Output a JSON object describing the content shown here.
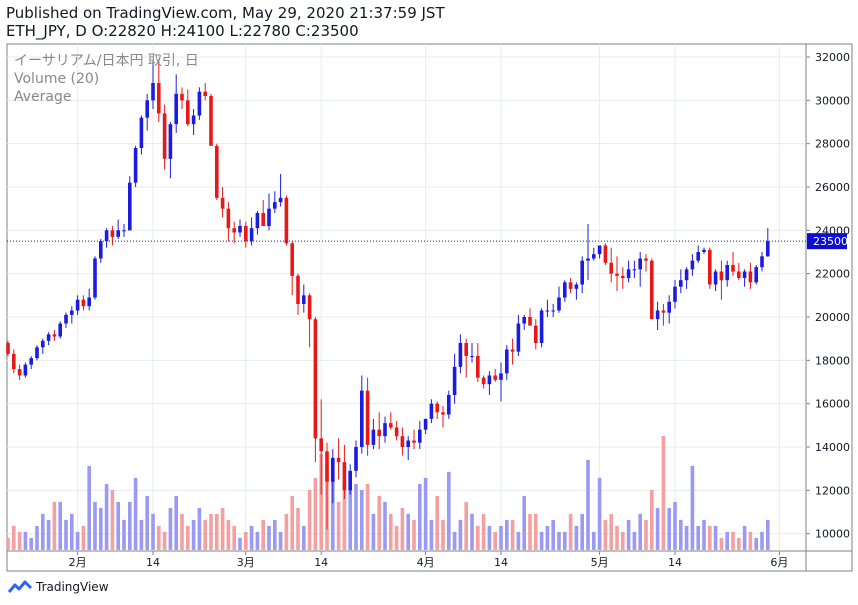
{
  "header": {
    "published": "Published on TradingView.com, May 29, 2020 21:37:59 JST",
    "ohlc": "ETH_JPY, D O:22820 H:24100 L:22780 C:23500"
  },
  "legend": {
    "symbol": "イーサリアム/日本円 取引, 日",
    "volume": "Volume (20)",
    "average": "Average"
  },
  "footer": {
    "brand": "TradingView"
  },
  "colors": {
    "up": "#1c1ce0",
    "down": "#e81818",
    "vol_up": "#9a9af5",
    "vol_down": "#f5a0a0",
    "grid": "#e8ebef",
    "price_line": "#1c1c8c",
    "price_label_bg": "#0d0dd6"
  },
  "chart_data": {
    "type": "candlestick",
    "symbol": "ETH_JPY",
    "interval": "D",
    "ylim": [
      9200,
      32600
    ],
    "y_ticks": [
      10000,
      12000,
      14000,
      16000,
      18000,
      20000,
      22000,
      24000,
      26000,
      28000,
      30000,
      32000
    ],
    "x_ticks": [
      {
        "label": "2月",
        "index": 12
      },
      {
        "label": "14",
        "index": 25
      },
      {
        "label": "3月",
        "index": 41
      },
      {
        "label": "14",
        "index": 54
      },
      {
        "label": "4月",
        "index": 72
      },
      {
        "label": "14",
        "index": 85
      },
      {
        "label": "5月",
        "index": 102
      },
      {
        "label": "14",
        "index": 115
      },
      {
        "label": "6月",
        "index": 133
      }
    ],
    "last_price": 23500,
    "last_price_label": "23500",
    "x_max_index": 136,
    "volume_baseline": 9250,
    "volume_scale_per_unit": 6,
    "candles": [
      [
        18800,
        18900,
        18200,
        18300,
        2
      ],
      [
        18300,
        18500,
        17400,
        17600,
        4
      ],
      [
        17600,
        17800,
        17100,
        17300,
        3
      ],
      [
        17300,
        17900,
        17200,
        17800,
        3
      ],
      [
        17800,
        18200,
        17600,
        18100,
        2
      ],
      [
        18100,
        18700,
        18000,
        18600,
        4
      ],
      [
        18600,
        19000,
        18300,
        18900,
        6
      ],
      [
        18900,
        19300,
        18700,
        19200,
        5
      ],
      [
        19200,
        19400,
        18900,
        19100,
        8
      ],
      [
        19100,
        19800,
        19000,
        19700,
        8
      ],
      [
        19700,
        20200,
        19500,
        20100,
        5
      ],
      [
        20100,
        20500,
        19700,
        20300,
        6
      ],
      [
        20300,
        21000,
        20100,
        20800,
        3
      ],
      [
        20800,
        21000,
        20300,
        20500,
        4
      ],
      [
        20500,
        21300,
        20300,
        20900,
        14
      ],
      [
        20900,
        22800,
        20800,
        22700,
        8
      ],
      [
        22700,
        23600,
        22500,
        23500,
        7
      ],
      [
        23500,
        24100,
        23200,
        24000,
        11
      ],
      [
        24000,
        24200,
        23300,
        23700,
        10
      ],
      [
        23700,
        24500,
        23600,
        24000,
        8
      ],
      [
        24000,
        24300,
        23700,
        24000,
        5
      ],
      [
        24000,
        26500,
        24000,
        26200,
        8
      ],
      [
        26200,
        27900,
        26000,
        27800,
        12
      ],
      [
        27800,
        29300,
        27500,
        29200,
        5
      ],
      [
        29200,
        30300,
        28600,
        30000,
        9
      ],
      [
        30000,
        31800,
        29600,
        30800,
        6
      ],
      [
        30800,
        31900,
        29000,
        29400,
        4
      ],
      [
        29400,
        29800,
        26800,
        27300,
        3
      ],
      [
        27300,
        29000,
        26400,
        28900,
        7
      ],
      [
        28900,
        31200,
        28500,
        30300,
        9
      ],
      [
        30300,
        30600,
        29600,
        30000,
        6
      ],
      [
        30000,
        30500,
        28800,
        28900,
        4
      ],
      [
        28900,
        29600,
        28400,
        29300,
        5
      ],
      [
        29300,
        30600,
        29100,
        30400,
        7
      ],
      [
        30400,
        30800,
        30000,
        30200,
        5
      ],
      [
        30200,
        30300,
        28000,
        27900,
        6
      ],
      [
        27900,
        28000,
        25400,
        25500,
        6
      ],
      [
        25500,
        26000,
        24600,
        25000,
        7
      ],
      [
        25000,
        25300,
        23500,
        24100,
        5
      ],
      [
        24100,
        24400,
        23400,
        23900,
        4
      ],
      [
        23900,
        24500,
        23700,
        24200,
        2
      ],
      [
        24200,
        24400,
        23200,
        23500,
        3
      ],
      [
        23500,
        24600,
        23300,
        24100,
        4
      ],
      [
        24100,
        24900,
        23800,
        24800,
        3
      ],
      [
        24800,
        25400,
        24300,
        24200,
        5
      ],
      [
        24200,
        25700,
        24000,
        25000,
        4
      ],
      [
        25000,
        25800,
        24800,
        25300,
        5
      ],
      [
        25300,
        26600,
        25100,
        25500,
        3
      ],
      [
        25500,
        25600,
        23300,
        23400,
        6
      ],
      [
        23400,
        23500,
        21000,
        21900,
        9
      ],
      [
        21900,
        22000,
        20100,
        20600,
        7
      ],
      [
        20600,
        21500,
        20200,
        21000,
        4
      ],
      [
        21000,
        21100,
        18600,
        19900,
        10
      ],
      [
        19900,
        20000,
        13300,
        14400,
        12
      ],
      [
        14400,
        16200,
        11800,
        13800,
        16
      ],
      [
        13800,
        14200,
        10200,
        12400,
        14
      ],
      [
        12400,
        13900,
        11400,
        13500,
        12
      ],
      [
        13500,
        14400,
        12500,
        13300,
        8
      ],
      [
        13300,
        14100,
        11600,
        12000,
        11
      ],
      [
        12000,
        13200,
        11800,
        12900,
        13
      ],
      [
        12900,
        14300,
        12600,
        14000,
        11
      ],
      [
        14000,
        17300,
        13700,
        16600,
        10
      ],
      [
        16600,
        17200,
        13600,
        14100,
        11
      ],
      [
        14100,
        15300,
        13900,
        14800,
        6
      ],
      [
        14800,
        15600,
        13900,
        14500,
        9
      ],
      [
        14500,
        15400,
        14200,
        15100,
        8
      ],
      [
        15100,
        15600,
        14800,
        14900,
        6
      ],
      [
        14900,
        15200,
        14300,
        14500,
        4
      ],
      [
        14500,
        14900,
        13600,
        14000,
        7
      ],
      [
        14000,
        14500,
        13400,
        14300,
        6
      ],
      [
        14300,
        14800,
        13900,
        14200,
        5
      ],
      [
        14200,
        15200,
        13900,
        14800,
        11
      ],
      [
        14800,
        15300,
        14600,
        15300,
        12
      ],
      [
        15300,
        16200,
        15100,
        16000,
        5
      ],
      [
        16000,
        16100,
        15300,
        15600,
        9
      ],
      [
        15600,
        15900,
        14900,
        15500,
        5
      ],
      [
        15500,
        16600,
        15300,
        16400,
        13
      ],
      [
        16400,
        18300,
        16000,
        17700,
        3
      ],
      [
        17700,
        19200,
        17400,
        18800,
        5
      ],
      [
        18800,
        19000,
        17200,
        18200,
        8
      ],
      [
        18200,
        18800,
        17900,
        18200,
        6
      ],
      [
        18200,
        18800,
        17000,
        17200,
        4
      ],
      [
        17200,
        17300,
        16700,
        16900,
        6
      ],
      [
        16900,
        17500,
        16400,
        17300,
        4
      ],
      [
        17300,
        17600,
        17000,
        17100,
        3
      ],
      [
        17100,
        17900,
        16100,
        17400,
        4
      ],
      [
        17400,
        18700,
        17100,
        18500,
        5
      ],
      [
        18500,
        19000,
        17800,
        18400,
        5
      ],
      [
        18400,
        20100,
        18200,
        19700,
        3
      ],
      [
        19700,
        20100,
        19400,
        20000,
        9
      ],
      [
        20000,
        20400,
        19700,
        19600,
        6
      ],
      [
        19600,
        19900,
        18500,
        18800,
        6
      ],
      [
        18800,
        20400,
        18600,
        20300,
        3
      ],
      [
        20300,
        20800,
        20000,
        20300,
        4
      ],
      [
        20300,
        20600,
        20000,
        20300,
        5
      ],
      [
        20300,
        21400,
        20200,
        20900,
        3
      ],
      [
        20900,
        21700,
        20700,
        21600,
        3
      ],
      [
        21600,
        21800,
        21100,
        21300,
        6
      ],
      [
        21300,
        21600,
        20800,
        21500,
        4
      ],
      [
        21500,
        22800,
        21100,
        22600,
        6
      ],
      [
        22600,
        24300,
        21700,
        22700,
        15
      ],
      [
        22700,
        23200,
        22600,
        22900,
        3
      ],
      [
        22900,
        23300,
        22700,
        23300,
        12
      ],
      [
        23300,
        23400,
        22400,
        22500,
        5
      ],
      [
        22500,
        23200,
        21600,
        22000,
        6
      ],
      [
        22000,
        22800,
        21200,
        21900,
        4
      ],
      [
        21900,
        22300,
        21300,
        21800,
        3
      ],
      [
        21800,
        22600,
        21600,
        22200,
        5
      ],
      [
        22200,
        22600,
        21800,
        22200,
        3
      ],
      [
        22200,
        23000,
        21400,
        22700,
        6
      ],
      [
        22700,
        22900,
        22100,
        22600,
        5
      ],
      [
        22600,
        22700,
        20000,
        19900,
        10
      ],
      [
        19900,
        20700,
        19400,
        20300,
        7
      ],
      [
        20300,
        20600,
        19600,
        20200,
        19
      ],
      [
        20200,
        21000,
        19700,
        20700,
        7
      ],
      [
        20700,
        21700,
        20400,
        21400,
        8
      ],
      [
        21400,
        22200,
        21100,
        21700,
        5
      ],
      [
        21700,
        22300,
        21300,
        22200,
        4
      ],
      [
        22200,
        22900,
        21900,
        22600,
        14
      ],
      [
        22600,
        23300,
        22500,
        23000,
        4
      ],
      [
        23000,
        23200,
        22900,
        23100,
        5
      ],
      [
        23100,
        23200,
        21300,
        21500,
        4
      ],
      [
        21500,
        22200,
        21200,
        22100,
        4
      ],
      [
        22100,
        22600,
        20800,
        21700,
        2
      ],
      [
        21700,
        22600,
        21400,
        22400,
        3
      ],
      [
        22400,
        23000,
        21900,
        22100,
        3
      ],
      [
        22100,
        22500,
        21700,
        21800,
        2
      ],
      [
        21800,
        22200,
        21400,
        22100,
        4
      ],
      [
        22100,
        22500,
        21300,
        21600,
        3
      ],
      [
        21600,
        22400,
        21500,
        22300,
        2
      ],
      [
        22300,
        23000,
        22100,
        22800,
        3
      ],
      [
        22800,
        24100,
        22780,
        23500,
        5
      ]
    ]
  }
}
